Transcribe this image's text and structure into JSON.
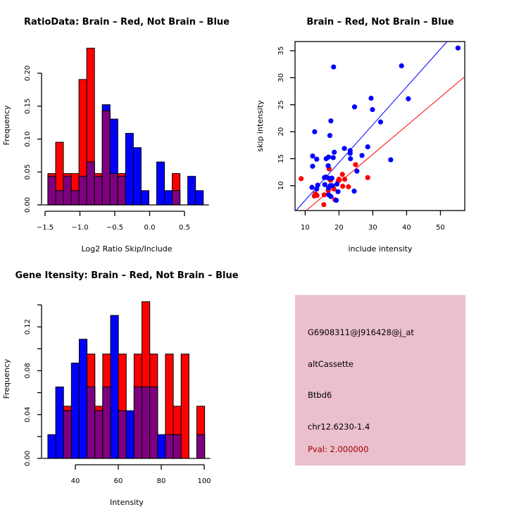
{
  "colors": {
    "brain": "#ff0000",
    "not_brain": "#0000ff",
    "overlap": "#7f007f",
    "info_bg": "#f0c8d4",
    "pval": "#a00000",
    "axis": "#000000"
  },
  "chart_data": [
    {
      "id": "ratio_hist",
      "type": "bar",
      "title": "RatioData: Brain – Red, Not Brain – Blue",
      "xlabel": "Log2 Ratio Skip/Include",
      "ylabel": "Frequency",
      "xlim": [
        -1.5,
        0.8
      ],
      "ylim": [
        0,
        0.24
      ],
      "xticks": [
        -1.5,
        -1.0,
        -0.5,
        0.0,
        0.5
      ],
      "xtick_labels": [
        "-1.5",
        "-1.0",
        "-0.5",
        "0.0",
        "0.5"
      ],
      "yticks": [
        0,
        0.05,
        0.1,
        0.15,
        0.2
      ],
      "ytick_labels": [
        "0.00",
        "0.05",
        "0.10",
        "0.15",
        "0.20"
      ],
      "bin_start": -1.46,
      "bin_width": 0.1115,
      "series": [
        {
          "name": "Brain",
          "color": "red",
          "values": [
            0.0476,
            0.0952,
            0.0476,
            0.0476,
            0.1905,
            0.2381,
            0.0476,
            0.1429,
            0.0476,
            0.0476,
            0,
            0,
            0,
            0,
            0,
            0,
            0.0476,
            0,
            0,
            0
          ]
        },
        {
          "name": "Not Brain",
          "color": "blue",
          "values": [
            0.0435,
            0.0217,
            0.0435,
            0.0217,
            0.0435,
            0.0652,
            0.0435,
            0.1522,
            0.1304,
            0.0435,
            0.1087,
            0.087,
            0.0217,
            0,
            0.0652,
            0.0217,
            0.0217,
            0,
            0.0435,
            0.0217
          ]
        }
      ]
    },
    {
      "id": "intensity_scatter",
      "type": "scatter",
      "title": "Brain – Red, Not Brain – Blue",
      "xlabel": "include intensity",
      "ylabel": "skip intensity",
      "xlim": [
        7.0,
        57.2
      ],
      "ylim": [
        5.4,
        36.7
      ],
      "xticks": [
        10,
        20,
        30,
        40,
        50
      ],
      "yticks": [
        10,
        15,
        20,
        25,
        30,
        35
      ],
      "series": [
        {
          "name": "Brain",
          "color": "red",
          "points": [
            [
              8.8,
              11.3
            ],
            [
              12.7,
              8.1
            ],
            [
              13.0,
              8.5
            ],
            [
              13.5,
              8.2
            ],
            [
              15.5,
              6.5
            ],
            [
              15.6,
              8.3
            ],
            [
              16.8,
              9.1
            ],
            [
              17.1,
              13.1
            ],
            [
              17.5,
              11.0
            ],
            [
              18.5,
              9.4
            ],
            [
              18.8,
              7.4
            ],
            [
              19.8,
              10.9
            ],
            [
              20.0,
              11.2
            ],
            [
              21.0,
              12.1
            ],
            [
              21.1,
              9.9
            ],
            [
              21.7,
              11.2
            ],
            [
              22.8,
              9.8
            ],
            [
              24.9,
              13.9
            ],
            [
              28.5,
              11.5
            ]
          ]
        },
        {
          "name": "Not Brain",
          "color": "blue",
          "points": [
            [
              12.0,
              9.7
            ],
            [
              12.2,
              15.5
            ],
            [
              12.2,
              13.6
            ],
            [
              12.8,
              20.0
            ],
            [
              13.4,
              14.9
            ],
            [
              13.4,
              9.4
            ],
            [
              13.7,
              10.1
            ],
            [
              15.7,
              11.5
            ],
            [
              15.8,
              10.2
            ],
            [
              16.1,
              11.6
            ],
            [
              16.2,
              15.0
            ],
            [
              16.8,
              13.7
            ],
            [
              16.9,
              15.3
            ],
            [
              16.9,
              11.4
            ],
            [
              16.9,
              9.6
            ],
            [
              17.0,
              8.3
            ],
            [
              17.3,
              19.3
            ],
            [
              17.4,
              10.0
            ],
            [
              17.6,
              22.0
            ],
            [
              17.6,
              8.0
            ],
            [
              17.9,
              11.4
            ],
            [
              18.0,
              10.0
            ],
            [
              18.3,
              15.2
            ],
            [
              18.6,
              16.2
            ],
            [
              18.4,
              32.0
            ],
            [
              19.2,
              7.3
            ],
            [
              19.4,
              10.3
            ],
            [
              19.7,
              8.9
            ],
            [
              21.6,
              16.9
            ],
            [
              23.3,
              16.5
            ],
            [
              23.3,
              16.0
            ],
            [
              23.4,
              15.0
            ],
            [
              24.6,
              24.6
            ],
            [
              25.3,
              12.7
            ],
            [
              26.8,
              15.6
            ],
            [
              28.5,
              17.2
            ],
            [
              29.5,
              26.2
            ],
            [
              29.9,
              24.1
            ],
            [
              32.3,
              21.8
            ],
            [
              35.3,
              14.8
            ],
            [
              38.5,
              32.2
            ],
            [
              40.5,
              26.1
            ],
            [
              24.5,
              9.0
            ],
            [
              55.2,
              35.5
            ]
          ]
        }
      ],
      "fit_lines": [
        {
          "name": "Not Brain fit",
          "color": "blue",
          "from": [
            7.3,
            5.4
          ],
          "to": [
            52.0,
            36.7
          ]
        },
        {
          "name": "Brain fit",
          "color": "red",
          "from": [
            10.3,
            5.4
          ],
          "to": [
            57.2,
            30.2
          ]
        }
      ]
    },
    {
      "id": "gene_hist",
      "type": "bar",
      "title": "Gene Itensity: Brain – Red, Not Brain – Blue",
      "xlabel": "Intensity",
      "ylabel": "Frequency",
      "xlim": [
        27,
        103
      ],
      "ylim": [
        0,
        0.143
      ],
      "xticks": [
        40,
        60,
        80,
        100
      ],
      "xtick_labels": [
        "40",
        "60",
        "80",
        "100"
      ],
      "yticks": [
        0,
        0.02,
        0.04,
        0.06,
        0.08,
        0.1,
        0.12,
        0.14
      ],
      "ytick_labels": [
        "0.00",
        "",
        "0.04",
        "",
        "0.08",
        "",
        "0.12",
        ""
      ],
      "bin_start": 27.2,
      "bin_width": 3.65,
      "series": [
        {
          "name": "Brain",
          "color": "red",
          "values": [
            0,
            0,
            0.0476,
            0,
            0,
            0.0952,
            0.0476,
            0.0952,
            0,
            0.0952,
            0,
            0.0952,
            0.1429,
            0.0952,
            0,
            0.0952,
            0.0476,
            0.0952,
            0,
            0.0476
          ]
        },
        {
          "name": "Not Brain",
          "color": "blue",
          "values": [
            0.0217,
            0.0652,
            0.0435,
            0.087,
            0.1087,
            0.0652,
            0.0435,
            0.0652,
            0.1304,
            0.0435,
            0.0435,
            0.0652,
            0.0652,
            0.0652,
            0.0217,
            0.0217,
            0.0217,
            0,
            0,
            0.0217
          ]
        }
      ]
    }
  ],
  "info_panel": {
    "probe_id": "G6908311@J916428@j_at",
    "event_type": "altCassette",
    "gene": "Btbd6",
    "location": "chr12.6230-1.4",
    "pval": "Pval: 2.000000"
  }
}
